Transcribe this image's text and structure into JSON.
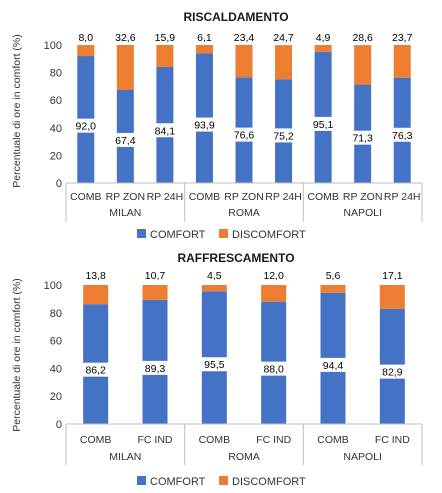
{
  "charts": [
    {
      "title": "RISCALDAMENTO",
      "ylabel": "Percentuale di ore in comfort (%)",
      "yticks": [
        "0",
        "20",
        "40",
        "60",
        "80",
        "100"
      ],
      "legend": [
        "COMFORT",
        "DISCOMFORT"
      ]
    },
    {
      "title": "RAFFRESCAMENTO",
      "ylabel": "Percentuale di ore in comfort (%)",
      "yticks": [
        "0",
        "20",
        "40",
        "60",
        "80",
        "100"
      ],
      "legend": [
        "COMFORT",
        "DISCOMFORT"
      ]
    }
  ],
  "chart_data": [
    {
      "type": "bar",
      "stacked": true,
      "title": "RISCALDAMENTO",
      "ylabel": "Percentuale di ore in comfort (%)",
      "ylim": [
        0,
        100
      ],
      "groups": [
        "MILAN",
        "ROMA",
        "NAPOLI"
      ],
      "categories": [
        "COMB",
        "RP ZON",
        "RP 24H",
        "COMB",
        "RP ZON",
        "RP 24H",
        "COMB",
        "RP ZON",
        "RP 24H"
      ],
      "series": [
        {
          "name": "COMFORT",
          "color": "#4472c4",
          "values": [
            92.0,
            67.4,
            84.1,
            93.9,
            76.6,
            75.2,
            95.1,
            71.3,
            76.3
          ],
          "labels": [
            "92,0",
            "67,4",
            "84,1",
            "93,9",
            "76,6",
            "75,2",
            "95,1",
            "71,3",
            "76,3"
          ]
        },
        {
          "name": "DISCOMFORT",
          "color": "#ed7d31",
          "values": [
            8.0,
            32.6,
            15.9,
            6.1,
            23.4,
            24.7,
            4.9,
            28.6,
            23.7
          ],
          "labels": [
            "8,0",
            "32,6",
            "15,9",
            "6,1",
            "23,4",
            "24,7",
            "4,9",
            "28,6",
            "23,7"
          ]
        }
      ],
      "legend_position": "bottom",
      "grid": false
    },
    {
      "type": "bar",
      "stacked": true,
      "title": "RAFFRESCAMENTO",
      "ylabel": "Percentuale di ore in comfort (%)",
      "ylim": [
        0,
        100
      ],
      "groups": [
        "MILAN",
        "ROMA",
        "NAPOLI"
      ],
      "categories": [
        "COMB",
        "FC IND",
        "COMB",
        "FC IND",
        "COMB",
        "FC IND"
      ],
      "series": [
        {
          "name": "COMFORT",
          "color": "#4472c4",
          "values": [
            86.2,
            89.3,
            95.5,
            88.0,
            94.4,
            82.9
          ],
          "labels": [
            "86,2",
            "89,3",
            "95,5",
            "88,0",
            "94,4",
            "82,9"
          ]
        },
        {
          "name": "DISCOMFORT",
          "color": "#ed7d31",
          "values": [
            13.8,
            10.7,
            4.5,
            12.0,
            5.6,
            17.1
          ],
          "labels": [
            "13,8",
            "10,7",
            "4,5",
            "12,0",
            "5,6",
            "17,1"
          ]
        }
      ],
      "legend_position": "bottom",
      "grid": false
    }
  ]
}
